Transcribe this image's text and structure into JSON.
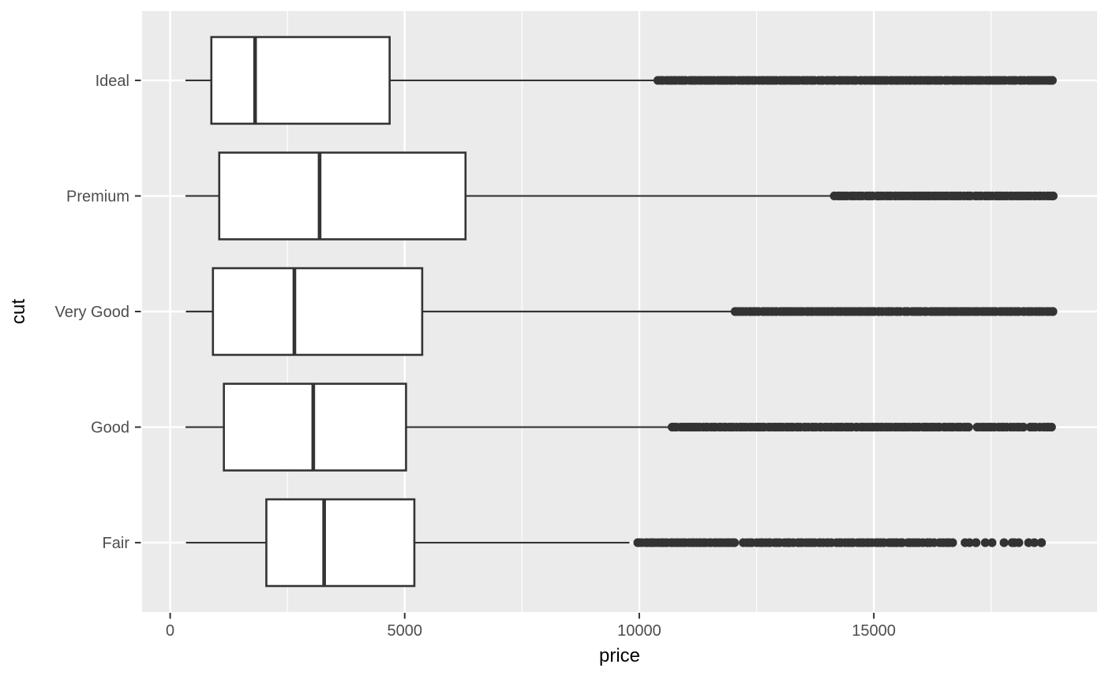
{
  "figure": {
    "kind": "ggplot2-boxplot",
    "background_color": "#FFFFFF",
    "panel_color": "#EBEBEB",
    "grid_color": "#FFFFFF",
    "stroke_color": "#333333",
    "tick_label_color": "#4D4D4D",
    "axis_title_color": "#000000"
  },
  "chart_data": {
    "type": "boxplot",
    "orientation": "horizontal",
    "title": "",
    "xlabel": "price",
    "ylabel": "cut",
    "x_range_data": [
      0,
      18823
    ],
    "x_axis_limits": [
      -599,
      19760
    ],
    "x_major_ticks": [
      0,
      5000,
      10000,
      15000
    ],
    "x_major_tick_labels": [
      "0",
      "5000",
      "10000",
      "15000"
    ],
    "x_minor_ticks": [
      2500,
      7500,
      12500,
      17500
    ],
    "grid": "major-and-minor",
    "legend": "none",
    "categories_top_to_bottom": [
      "Ideal",
      "Premium",
      "Very Good",
      "Good",
      "Fair"
    ],
    "series": [
      {
        "cut": "Ideal",
        "whisker_low": 326,
        "q1": 878,
        "median": 1810,
        "q3": 4678.5,
        "whisker_high": 10370,
        "outlier_min": 10400,
        "outlier_max": 18806,
        "outlier_segments": [
          [
            10400,
            18806,
            55
          ]
        ]
      },
      {
        "cut": "Premium",
        "whisker_low": 326,
        "q1": 1046,
        "median": 3185,
        "q3": 6296,
        "whisker_high": 14160,
        "outlier_min": 14170,
        "outlier_max": 18823,
        "outlier_segments": [
          [
            14170,
            18823,
            55
          ]
        ]
      },
      {
        "cut": "Very Good",
        "whisker_low": 336,
        "q1": 912,
        "median": 2648,
        "q3": 5372.75,
        "whisker_high": 12050,
        "outlier_min": 12060,
        "outlier_max": 18818,
        "outlier_segments": [
          [
            12060,
            18818,
            55
          ]
        ]
      },
      {
        "cut": "Good",
        "whisker_low": 327,
        "q1": 1145,
        "median": 3050.5,
        "q3": 5028,
        "whisker_high": 10690,
        "outlier_min": 10700,
        "outlier_max": 18788,
        "outlier_segments": [
          [
            10700,
            17020,
            55
          ],
          [
            17190,
            18190,
            65
          ],
          [
            18320,
            18788,
            70
          ]
        ]
      },
      {
        "cut": "Fair",
        "whisker_low": 337,
        "q1": 2050.25,
        "median": 3282,
        "q3": 5205.5,
        "whisker_high": 9790,
        "outlier_min": 9950,
        "outlier_max": 18574,
        "outlier_segments": [
          [
            9950,
            12030,
            55
          ],
          [
            12230,
            13180,
            65
          ],
          [
            13230,
            14020,
            65
          ],
          [
            14120,
            14560,
            70
          ],
          [
            14650,
            15500,
            65
          ],
          [
            15560,
            16150,
            70
          ],
          [
            16220,
            16680,
            80
          ],
          [
            16960,
            17180,
            110
          ],
          [
            17380,
            17520,
            150
          ],
          [
            17760,
            18000,
            150
          ],
          [
            18150,
            18300,
            160
          ],
          [
            18450,
            18574,
            124
          ]
        ]
      }
    ]
  }
}
